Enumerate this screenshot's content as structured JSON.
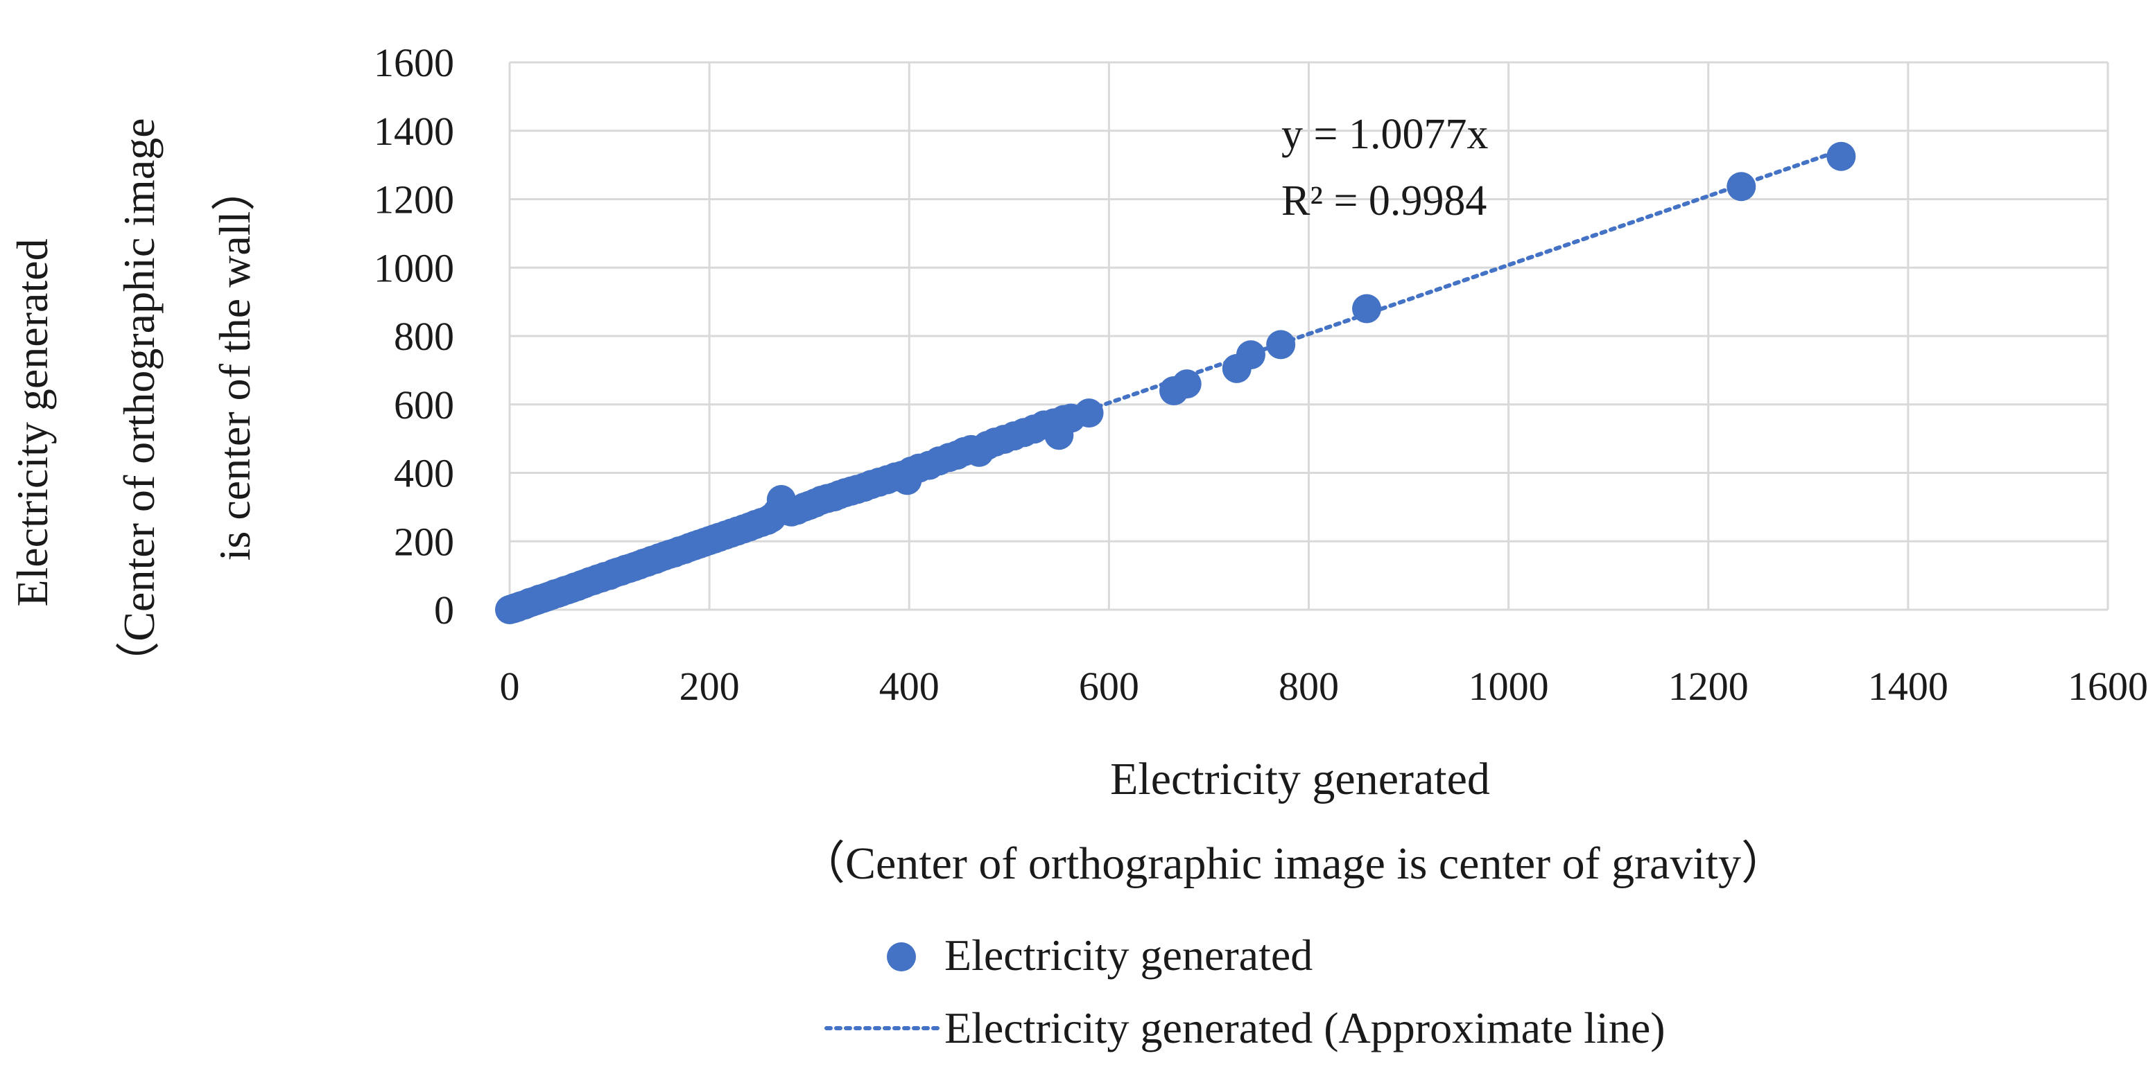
{
  "colors": {
    "series": "#4472C4",
    "grid": "#D9D9D9",
    "text": "#1a1a1a"
  },
  "chart_data": {
    "type": "scatter",
    "title": "",
    "xlabel_line1": "Electricity generated",
    "xlabel_line2": "（Center of orthographic image is center of gravity）",
    "ylabel_line1": "Electricity generated",
    "ylabel_line2": "（Center of orthographic image",
    "ylabel_line3": "is center of the wall）",
    "xlim": [
      0,
      1600
    ],
    "ylim": [
      0,
      1600
    ],
    "xticks": [
      0,
      200,
      400,
      600,
      800,
      1000,
      1200,
      1400,
      1600
    ],
    "yticks": [
      0,
      200,
      400,
      600,
      800,
      1000,
      1200,
      1400,
      1600
    ],
    "grid": true,
    "legend_position": "bottom",
    "legend": {
      "points_label": "Electricity generated",
      "line_label": "Electricity generated (Approximate line)"
    },
    "trendline": {
      "slope": 1.0077,
      "intercept": 0,
      "x_range": [
        0,
        1335
      ],
      "style": "dotted",
      "equation_label": "y = 1.0077x",
      "r2_label": "R² = 0.9984"
    },
    "series": [
      {
        "name": "Electricity generated",
        "points": [
          [
            0,
            0
          ],
          [
            2,
            2
          ],
          [
            4,
            3
          ],
          [
            6,
            6
          ],
          [
            8,
            7
          ],
          [
            10,
            10
          ],
          [
            12,
            12
          ],
          [
            15,
            14
          ],
          [
            18,
            18
          ],
          [
            20,
            21
          ],
          [
            22,
            22
          ],
          [
            25,
            25
          ],
          [
            28,
            28
          ],
          [
            30,
            31
          ],
          [
            33,
            33
          ],
          [
            36,
            36
          ],
          [
            39,
            39
          ],
          [
            42,
            42
          ],
          [
            45,
            46
          ],
          [
            48,
            48
          ],
          [
            52,
            52
          ],
          [
            55,
            56
          ],
          [
            58,
            58
          ],
          [
            62,
            62
          ],
          [
            65,
            66
          ],
          [
            68,
            68
          ],
          [
            72,
            73
          ],
          [
            75,
            76
          ],
          [
            80,
            82
          ],
          [
            84,
            85
          ],
          [
            88,
            90
          ],
          [
            92,
            93
          ],
          [
            95,
            97
          ],
          [
            100,
            100
          ],
          [
            104,
            106
          ],
          [
            108,
            110
          ],
          [
            112,
            113
          ],
          [
            116,
            118
          ],
          [
            120,
            121
          ],
          [
            125,
            126
          ],
          [
            130,
            131
          ],
          [
            134,
            136
          ],
          [
            138,
            139
          ],
          [
            142,
            144
          ],
          [
            146,
            147
          ],
          [
            150,
            152
          ],
          [
            155,
            157
          ],
          [
            160,
            162
          ],
          [
            165,
            166
          ],
          [
            170,
            172
          ],
          [
            175,
            176
          ],
          [
            180,
            182
          ],
          [
            185,
            187
          ],
          [
            190,
            192
          ],
          [
            195,
            197
          ],
          [
            200,
            202
          ],
          [
            205,
            207
          ],
          [
            210,
            212
          ],
          [
            216,
            218
          ],
          [
            222,
            224
          ],
          [
            228,
            230
          ],
          [
            234,
            236
          ],
          [
            240,
            242
          ],
          [
            246,
            249
          ],
          [
            252,
            255
          ],
          [
            258,
            261
          ],
          [
            262,
            268
          ],
          [
            268,
            285
          ],
          [
            272,
            322
          ],
          [
            276,
            290
          ],
          [
            282,
            286
          ],
          [
            288,
            291
          ],
          [
            295,
            300
          ],
          [
            300,
            305
          ],
          [
            306,
            312
          ],
          [
            312,
            320
          ],
          [
            318,
            325
          ],
          [
            325,
            330
          ],
          [
            330,
            336
          ],
          [
            336,
            342
          ],
          [
            342,
            347
          ],
          [
            348,
            352
          ],
          [
            355,
            358
          ],
          [
            362,
            366
          ],
          [
            370,
            373
          ],
          [
            378,
            380
          ],
          [
            386,
            388
          ],
          [
            393,
            393
          ],
          [
            398,
            378
          ],
          [
            402,
            405
          ],
          [
            410,
            414
          ],
          [
            420,
            422
          ],
          [
            430,
            435
          ],
          [
            440,
            445
          ],
          [
            448,
            452
          ],
          [
            455,
            462
          ],
          [
            462,
            468
          ],
          [
            470,
            460
          ],
          [
            478,
            480
          ],
          [
            486,
            490
          ],
          [
            495,
            498
          ],
          [
            505,
            508
          ],
          [
            515,
            518
          ],
          [
            525,
            528
          ],
          [
            535,
            540
          ],
          [
            545,
            546
          ],
          [
            550,
            510
          ],
          [
            555,
            556
          ],
          [
            562,
            560
          ],
          [
            580,
            575
          ],
          [
            665,
            640
          ],
          [
            678,
            660
          ],
          [
            728,
            705
          ],
          [
            742,
            745
          ],
          [
            772,
            775
          ],
          [
            858,
            880
          ],
          [
            1233,
            1237
          ],
          [
            1333,
            1325
          ]
        ]
      }
    ]
  }
}
